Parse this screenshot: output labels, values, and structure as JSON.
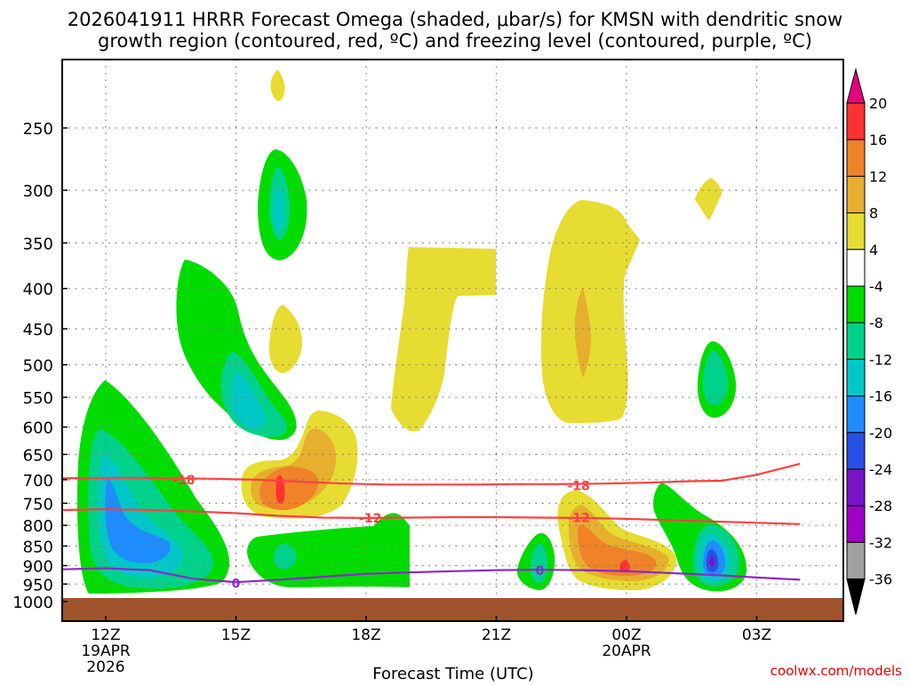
{
  "chart_data": {
    "type": "time-height cross-section",
    "title_line1": "2026041911 HRRR Forecast Omega (shaded, μbar/s) for KMSN with dendritic snow",
    "title_line2": "growth region (contoured, red, ºC) and freezing level (contoured, purple, ºC)",
    "xlabel": "Forecast Time (UTC)",
    "watermark": "coolwx.com/models",
    "x_ticks": [
      {
        "hour": 12,
        "label": "12Z",
        "sub1": "19APR",
        "sub2": "2026"
      },
      {
        "hour": 15,
        "label": "15Z"
      },
      {
        "hour": 18,
        "label": "18Z"
      },
      {
        "hour": 21,
        "label": "21Z"
      },
      {
        "hour": 24,
        "label": "00Z",
        "sub1": "20APR"
      },
      {
        "hour": 27,
        "label": "03Z"
      }
    ],
    "x_range_hours": [
      11,
      28
    ],
    "y_range_hpa": [
      1000,
      200
    ],
    "y_ticks": [
      250,
      300,
      350,
      400,
      450,
      500,
      550,
      600,
      650,
      700,
      750,
      800,
      850,
      900,
      950,
      1000
    ],
    "colorbar": {
      "labels": [
        "20",
        "16",
        "12",
        "8",
        "4",
        "-4",
        "-8",
        "-12",
        "-16",
        "-20",
        "-24",
        "-28",
        "-32",
        "-36"
      ],
      "colors": [
        "#ff3232",
        "#f08228",
        "#e6af2d",
        "#e6dc32",
        "#ffffff",
        "#00dc00",
        "#00d28c",
        "#00c8c8",
        "#1e8cff",
        "#2850e6",
        "#7814c8",
        "#a000c8",
        "#a0a0a0"
      ],
      "top_arrow": "#e6007d",
      "bottom_arrow": "#000000"
    },
    "contours": {
      "dgz_-18": {
        "label": "-18",
        "color": "#ff4040",
        "points": [
          [
            11.0,
            697
          ],
          [
            12.5,
            696
          ],
          [
            13.5,
            697
          ],
          [
            14.5,
            698
          ],
          [
            15.5,
            700
          ],
          [
            16.5,
            704
          ],
          [
            17.5,
            708
          ],
          [
            18.5,
            710
          ],
          [
            19.5,
            710
          ],
          [
            20.5,
            710
          ],
          [
            21.5,
            709
          ],
          [
            22.5,
            709
          ],
          [
            23.5,
            708
          ],
          [
            24.5,
            706
          ],
          [
            25.5,
            703
          ],
          [
            26.2,
            702
          ],
          [
            27.0,
            690
          ],
          [
            28.0,
            668
          ]
        ],
        "labels_at": [
          [
            13.8,
            700
          ],
          [
            22.9,
            712
          ]
        ]
      },
      "dgz_-12": {
        "label": "-12",
        "color": "#ff4040",
        "points": [
          [
            11.0,
            765
          ],
          [
            12.0,
            763
          ],
          [
            13.0,
            765
          ],
          [
            14.0,
            768
          ],
          [
            15.0,
            772
          ],
          [
            16.0,
            778
          ],
          [
            17.0,
            782
          ],
          [
            18.0,
            783
          ],
          [
            19.0,
            782
          ],
          [
            20.0,
            781
          ],
          [
            21.0,
            781
          ],
          [
            22.0,
            782
          ],
          [
            23.0,
            783
          ],
          [
            24.0,
            785
          ],
          [
            25.0,
            788
          ],
          [
            26.0,
            791
          ],
          [
            27.0,
            794
          ],
          [
            28.0,
            797
          ]
        ],
        "labels_at": [
          [
            18.1,
            783
          ],
          [
            22.9,
            782
          ]
        ]
      },
      "frz_0": {
        "label": "0",
        "color": "#8c28c8",
        "points": [
          [
            11.0,
            910
          ],
          [
            12.0,
            907
          ],
          [
            13.0,
            912
          ],
          [
            14.0,
            935
          ],
          [
            15.0,
            945
          ],
          [
            16.0,
            938
          ],
          [
            17.0,
            930
          ],
          [
            18.0,
            922
          ],
          [
            19.0,
            918
          ],
          [
            20.0,
            915
          ],
          [
            21.0,
            912
          ],
          [
            22.0,
            911
          ],
          [
            23.0,
            912
          ],
          [
            24.0,
            915
          ],
          [
            25.0,
            920
          ],
          [
            26.0,
            925
          ],
          [
            27.0,
            932
          ],
          [
            28.0,
            938
          ]
        ],
        "labels_at": [
          [
            15.0,
            948
          ],
          [
            22.0,
            913
          ]
        ]
      }
    }
  }
}
